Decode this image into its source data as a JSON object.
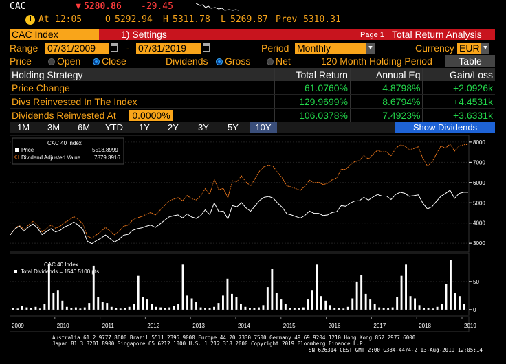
{
  "header": {
    "ticker": "CAC",
    "last_price": "5280.86",
    "change": "-29.45",
    "at_label": "At",
    "time": "12:05",
    "open_label": "O",
    "open": "5292.94",
    "high_label": "H",
    "high": "5311.78",
    "low_label": "L",
    "low": "5269.87",
    "prev_label": "Prev",
    "prev": "5310.31"
  },
  "tabs": {
    "security": "CAC Index",
    "settings": "Settings",
    "settings_num": "1)",
    "page": "Page 1",
    "title": "Total Return Analysis"
  },
  "controls": {
    "range_label": "Range",
    "start_date": "07/31/2009",
    "dash": "-",
    "end_date": "07/31/2019",
    "period_label": "Period",
    "period_value": "Monthly",
    "currency_label": "Currency",
    "currency_value": "EUR",
    "price_label": "Price",
    "open_option": "Open",
    "close_option": "Close",
    "dividends_label": "Dividends",
    "gross_option": "Gross",
    "net_option": "Net",
    "holding_period": "120 Month Holding Period",
    "table_button": "Table"
  },
  "table": {
    "headers": [
      "Holding Strategy",
      "Total Return",
      "Annual Eq",
      "Gain/Loss"
    ],
    "rows": [
      {
        "label": "Price Change",
        "total": "61.0760%",
        "annual": "4.8798%",
        "gain": "+2.0926k"
      },
      {
        "label": "Divs Reinvested In The Index",
        "total": "129.9699%",
        "annual": "8.6794%",
        "gain": "+4.4531k"
      },
      {
        "label": "Dividends Reinvested At",
        "rate": "0.0000%",
        "total": "106.0378%",
        "annual": "7.4923%",
        "gain": "+3.6331k"
      }
    ]
  },
  "periods": [
    "1M",
    "3M",
    "6M",
    "YTD",
    "1Y",
    "2Y",
    "3Y",
    "5Y",
    "10Y"
  ],
  "active_period": "10Y",
  "show_dividends": "Show Dividends",
  "colors": {
    "amber": "#f9a51a",
    "price_line": "#ffffff",
    "div_line": "#e8741a",
    "positive": "#22d64a",
    "negative": "#ff3b3b",
    "accent_blue": "#1e63d6"
  },
  "chart_data": [
    {
      "type": "line",
      "title": "CAC 40 Index",
      "legend": [
        {
          "name": "Price",
          "value": "5518.8999"
        },
        {
          "name": "Dividend Adjusted Value",
          "value": "7879.3916"
        }
      ],
      "x_labels": [
        "2009",
        "2010",
        "2011",
        "2012",
        "2013",
        "2014",
        "2015",
        "2016",
        "2017",
        "2018",
        "2019"
      ],
      "y_ticks": [
        3000,
        4000,
        5000,
        6000,
        7000,
        8000
      ],
      "ylim": [
        2700,
        8200
      ],
      "series": [
        {
          "name": "Price",
          "values": [
            3420,
            3700,
            3850,
            3600,
            3800,
            3950,
            3760,
            3430,
            3580,
            3720,
            3560,
            3640,
            3810,
            3900,
            4050,
            3900,
            3690,
            3100,
            2980,
            3130,
            3250,
            3410,
            3230,
            3060,
            3200,
            3400,
            3440,
            3640,
            3720,
            3760,
            3840,
            3900,
            3780,
            3950,
            4130,
            4300,
            4360,
            4400,
            4250,
            4450,
            4300,
            4230,
            4370,
            4650,
            4420,
            4990,
            4560,
            4590,
            4200,
            4860,
            4800,
            5010,
            4750,
            4580,
            4850,
            5120,
            5270,
            5310,
            5230,
            4980,
            4770,
            4460,
            4400,
            4320,
            4240,
            4380,
            4590,
            4480,
            4480,
            4370,
            4400,
            4520,
            4560,
            4860,
            4830,
            4990,
            5090,
            5100,
            5270,
            5130,
            5280,
            5410,
            5330,
            5330,
            5160,
            5410,
            5520,
            5470,
            5320,
            5350,
            5390,
            4980,
            4700,
            4800,
            5070,
            5320,
            5460,
            5620,
            5220,
            5460,
            5520,
            5520
          ]
        },
        {
          "name": "Dividend Adjusted Value",
          "values": [
            3420,
            3720,
            3900,
            3680,
            3900,
            4080,
            3900,
            3560,
            3730,
            3900,
            3740,
            3840,
            4030,
            4140,
            4320,
            4180,
            3960,
            3360,
            3250,
            3420,
            3580,
            3780,
            3600,
            3420,
            3600,
            3840,
            3900,
            4150,
            4260,
            4320,
            4430,
            4520,
            4400,
            4620,
            4860,
            5090,
            5180,
            5250,
            5100,
            5360,
            5200,
            5140,
            5330,
            5700,
            5430,
            6150,
            5650,
            5710,
            5250,
            6090,
            6040,
            6330,
            6030,
            5830,
            6200,
            6570,
            6790,
            6870,
            6790,
            6490,
            6230,
            5840,
            5780,
            5700,
            5620,
            5820,
            6120,
            5990,
            6020,
            5900,
            5960,
            6140,
            6230,
            6660,
            6650,
            6880,
            7040,
            7080,
            7330,
            7160,
            7390,
            7600,
            7510,
            7530,
            7310,
            7690,
            7860,
            7810,
            7620,
            7680,
            7770,
            7200,
            6820,
            6990,
            7420,
            7810,
            7700,
            7900,
            7560,
            7800,
            7870,
            7880
          ]
        }
      ]
    },
    {
      "type": "bar",
      "title": "CAC 40 Index",
      "legend": [
        {
          "name": "Total Dividends = 1540.5100 pts"
        }
      ],
      "y_ticks": [
        0,
        50
      ],
      "ylim": [
        -5,
        95
      ],
      "series": [
        {
          "name": "Total Dividends",
          "values": [
            3,
            2,
            6,
            4,
            3,
            5,
            2,
            10,
            82,
            30,
            35,
            16,
            5,
            3,
            4,
            2,
            4,
            12,
            78,
            22,
            14,
            12,
            5,
            3,
            2,
            3,
            5,
            10,
            60,
            22,
            18,
            10,
            5,
            4,
            3,
            4,
            6,
            10,
            80,
            25,
            20,
            14,
            4,
            3,
            3,
            5,
            12,
            25,
            55,
            28,
            22,
            10,
            5,
            3,
            3,
            4,
            8,
            40,
            72,
            30,
            18,
            10,
            3,
            3,
            3,
            4,
            18,
            35,
            80,
            24,
            16,
            8,
            3,
            3,
            2,
            5,
            20,
            50,
            62,
            28,
            18,
            10,
            4,
            3,
            3,
            4,
            22,
            60,
            80,
            24,
            20,
            8,
            3,
            3,
            2,
            5,
            10,
            45,
            88,
            30,
            24,
            10
          ]
        }
      ]
    }
  ],
  "footer": {
    "line1": "Australia 61 2 9777 8600 Brazil 5511 2395 9000 Europe 44 20 7330 7500 Germany 49 69 9204 1210 Hong Kong 852 2977 6000",
    "line2": "Japan 81 3 3201 8900         Singapore 65 6212 1000         U.S. 1 212 318 2000         Copyright 2019 Bloomberg Finance L.P.",
    "line3": "SN 626314 CEST  GMT+2:00 G384-4474-2 13-Aug-2019 12:05:14"
  }
}
